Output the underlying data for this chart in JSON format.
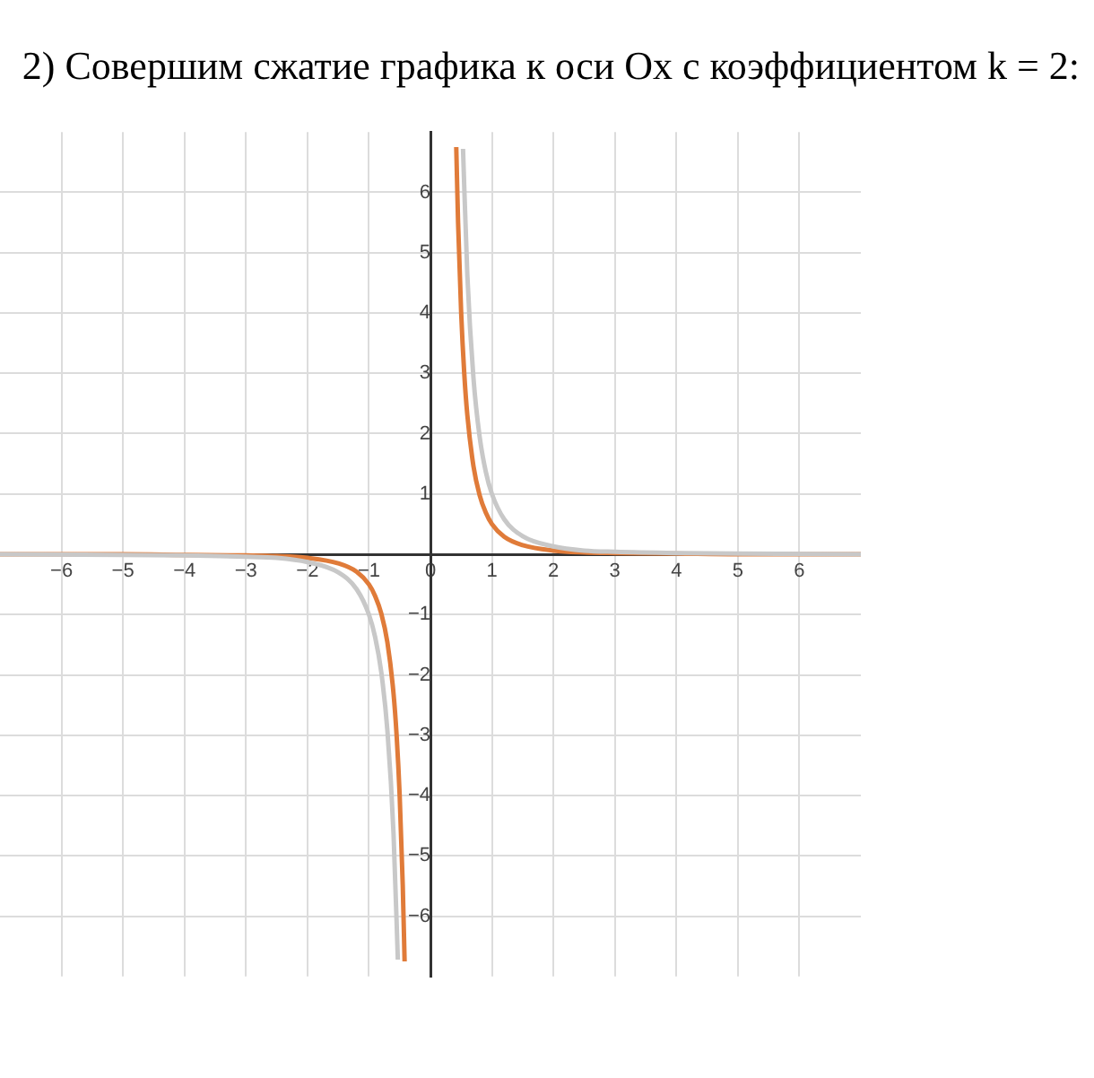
{
  "chart_data": {
    "type": "line",
    "title": "2) Совершим сжатие графика к оси Ox с коэффициентом k = 2:",
    "xlim": [
      -7,
      7
    ],
    "ylim": [
      -7,
      7
    ],
    "xticks": [
      -6,
      -5,
      -4,
      -3,
      -2,
      -1,
      0,
      1,
      2,
      3,
      4,
      5,
      6
    ],
    "yticks": [
      -6,
      -5,
      -4,
      -3,
      -2,
      -1,
      1,
      2,
      3,
      4,
      5,
      6
    ],
    "grid": true,
    "marker": "none",
    "series": [
      {
        "color": "#c8c8c8",
        "x": [
          -7,
          -5,
          -4,
          -3,
          -2.5,
          -2,
          -1.5,
          -1.2,
          -1,
          -0.9,
          -0.8,
          -0.7,
          -0.6,
          -0.53,
          0,
          0.53,
          0.6,
          0.7,
          0.8,
          0.9,
          1,
          1.2,
          1.5,
          2,
          2.5,
          3,
          4,
          5,
          7
        ],
        "values": [
          0,
          -0.01,
          -0.02,
          -0.04,
          -0.06,
          -0.13,
          -0.3,
          -0.58,
          -1,
          -1.37,
          -1.95,
          -2.92,
          -4.63,
          -6.72,
          null,
          6.72,
          4.63,
          2.92,
          1.95,
          1.37,
          1,
          0.58,
          0.3,
          0.13,
          0.06,
          0.04,
          0.02,
          0.01,
          0
        ]
      },
      {
        "color": "#e07b39",
        "x": [
          -7,
          -5,
          -4,
          -3,
          -2.5,
          -2,
          -1.5,
          -1.2,
          -1,
          -0.9,
          -0.8,
          -0.7,
          -0.6,
          -0.55,
          -0.5,
          -0.45,
          -0.42,
          0,
          0.42,
          0.45,
          0.5,
          0.55,
          0.6,
          0.7,
          0.8,
          0.9,
          1,
          1.2,
          1.5,
          2,
          2.5,
          3,
          4,
          5,
          7
        ],
        "values": [
          0,
          0,
          -0.01,
          -0.02,
          -0.03,
          -0.06,
          -0.15,
          -0.29,
          -0.5,
          -0.69,
          -0.98,
          -1.46,
          -2.31,
          -3,
          -4,
          -5.49,
          -6.75,
          null,
          6.75,
          5.49,
          4,
          3,
          2.31,
          1.46,
          0.98,
          0.69,
          0.5,
          0.29,
          0.15,
          0.06,
          0.03,
          0.02,
          0.01,
          0,
          0
        ]
      }
    ]
  }
}
